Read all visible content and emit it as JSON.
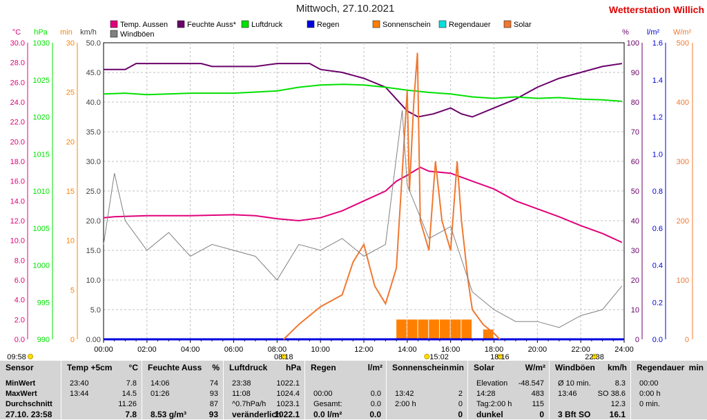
{
  "header": {
    "title": "Mittwoch, 27.10.2021",
    "station": "Wetterstation Willich"
  },
  "axes": {
    "left_units": [
      "°C",
      "hPa",
      "min",
      "km/h"
    ],
    "right_units": [
      "%",
      "l/m²",
      "W/m²"
    ],
    "temp_ticks": [
      "30.0",
      "28.0",
      "26.0",
      "24.0",
      "22.0",
      "20.0",
      "18.0",
      "16.0",
      "14.0",
      "12.0",
      "10.0",
      "8.0",
      "6.0",
      "4.0",
      "2.0",
      "0.0"
    ],
    "hpa_ticks": [
      "1030",
      "1025",
      "1020",
      "1015",
      "1010",
      "1005",
      "1000",
      "995",
      "990"
    ],
    "min_ticks": [
      "30",
      "25",
      "20",
      "15",
      "10",
      "5",
      "0"
    ],
    "kmh_ticks": [
      "50.0",
      "45.0",
      "40.0",
      "35.0",
      "30.0",
      "25.0",
      "20.0",
      "15.0",
      "10.0",
      "5.0",
      "0.00"
    ],
    "pct_ticks": [
      "100",
      "90",
      "80",
      "70",
      "60",
      "50",
      "40",
      "30",
      "20",
      "10",
      "0"
    ],
    "lm2_ticks": [
      "1.6",
      "1.4",
      "1.2",
      "1.0",
      "0.8",
      "0.6",
      "0.4",
      "0.2",
      "0.0"
    ],
    "wm2_ticks": [
      "500",
      "400",
      "300",
      "200",
      "100",
      "0"
    ],
    "time_ticks": [
      "00:00",
      "02:00",
      "04:00",
      "06:00",
      "08:00",
      "10:00",
      "12:00",
      "14:00",
      "16:00",
      "18:00",
      "20:00",
      "22:00",
      "24:00"
    ]
  },
  "legend": [
    {
      "label": "Temp. Aussen",
      "color": "#e0007a"
    },
    {
      "label": "Feuchte Auss*",
      "color": "#6a006a"
    },
    {
      "label": "Luftdruck",
      "color": "#00e000"
    },
    {
      "label": "Regen",
      "color": "#0000e0"
    },
    {
      "label": "Sonnenschein",
      "color": "#ff8000"
    },
    {
      "label": "Regendauer",
      "color": "#00e0e0"
    },
    {
      "label": "Solar",
      "color": "#f07830"
    },
    {
      "label": "Windböen",
      "color": "#808080"
    }
  ],
  "sun_markers": [
    {
      "label": "09:58",
      "hour": 9.967
    },
    {
      "label": "08:18",
      "hour": 8.3
    },
    {
      "label": "15:02",
      "hour": 15.033
    },
    {
      "label": "18:16",
      "hour": 18.267
    },
    {
      "label": "22:38",
      "hour": 22.633
    }
  ],
  "chart_data": {
    "type": "line",
    "title": "Mittwoch, 27.10.2021",
    "x_unit": "hour",
    "xlim": [
      0,
      24
    ],
    "temp_ylim": [
      0,
      30
    ],
    "hpa_ylim": [
      990,
      1030
    ],
    "min_ylim": [
      0,
      30
    ],
    "kmh_ylim": [
      0,
      50
    ],
    "pct_ylim": [
      0,
      100
    ],
    "lm2_ylim": [
      0,
      1.6
    ],
    "wm2_ylim": [
      0,
      500
    ],
    "series": [
      {
        "name": "Temp. Aussen",
        "axis": "temp",
        "color": "#e0007a",
        "points": [
          [
            0,
            12.3
          ],
          [
            0.5,
            12.4
          ],
          [
            2,
            12.5
          ],
          [
            4,
            12.5
          ],
          [
            6,
            12.6
          ],
          [
            7,
            12.5
          ],
          [
            8,
            12.2
          ],
          [
            9,
            12.0
          ],
          [
            10,
            12.3
          ],
          [
            11,
            13.0
          ],
          [
            12,
            14.0
          ],
          [
            13,
            15.0
          ],
          [
            13.5,
            16.0
          ],
          [
            14,
            16.6
          ],
          [
            14.6,
            17.4
          ],
          [
            15,
            17.0
          ],
          [
            16,
            16.8
          ],
          [
            17,
            16.0
          ],
          [
            18,
            15.2
          ],
          [
            19,
            14.0
          ],
          [
            20,
            13.2
          ],
          [
            21,
            12.4
          ],
          [
            22,
            11.5
          ],
          [
            23,
            10.7
          ],
          [
            23.9,
            9.8
          ]
        ]
      },
      {
        "name": "Feuchte Auss*",
        "axis": "pct",
        "color": "#6a006a",
        "points": [
          [
            0,
            91
          ],
          [
            1,
            91
          ],
          [
            1.5,
            93
          ],
          [
            3,
            93
          ],
          [
            4.5,
            93
          ],
          [
            5,
            92
          ],
          [
            7,
            92
          ],
          [
            8,
            93
          ],
          [
            9.5,
            93
          ],
          [
            10,
            91
          ],
          [
            11,
            90
          ],
          [
            12,
            88
          ],
          [
            13,
            85
          ],
          [
            13.5,
            81
          ],
          [
            14,
            77
          ],
          [
            14.5,
            75
          ],
          [
            15.2,
            76
          ],
          [
            16,
            78
          ],
          [
            16.5,
            76
          ],
          [
            17,
            75
          ],
          [
            18,
            78
          ],
          [
            19,
            81
          ],
          [
            20,
            85
          ],
          [
            21,
            88
          ],
          [
            22,
            90
          ],
          [
            23,
            92
          ],
          [
            23.9,
            93
          ]
        ]
      },
      {
        "name": "Luftdruck",
        "axis": "hpa",
        "color": "#00e000",
        "points": [
          [
            0,
            1023.1
          ],
          [
            1,
            1023.2
          ],
          [
            2,
            1023.0
          ],
          [
            4,
            1023.2
          ],
          [
            6,
            1023.2
          ],
          [
            8,
            1023.5
          ],
          [
            9,
            1024.0
          ],
          [
            10,
            1024.3
          ],
          [
            11.08,
            1024.4
          ],
          [
            12,
            1024.3
          ],
          [
            13,
            1024.0
          ],
          [
            14,
            1023.6
          ],
          [
            15,
            1023.3
          ],
          [
            16,
            1023.1
          ],
          [
            17,
            1022.7
          ],
          [
            18,
            1022.5
          ],
          [
            19,
            1022.7
          ],
          [
            20,
            1022.5
          ],
          [
            21,
            1022.6
          ],
          [
            22,
            1022.4
          ],
          [
            23,
            1022.3
          ],
          [
            23.9,
            1022.1
          ]
        ]
      },
      {
        "name": "Regen",
        "axis": "lm2",
        "color": "#0000e0",
        "points": [
          [
            0,
            0
          ],
          [
            24,
            0
          ]
        ]
      },
      {
        "name": "Solar",
        "axis": "wm2",
        "color": "#f07830",
        "points": [
          [
            8.3,
            0
          ],
          [
            9,
            25
          ],
          [
            10,
            55
          ],
          [
            11,
            75
          ],
          [
            11.5,
            130
          ],
          [
            12,
            160
          ],
          [
            12.5,
            90
          ],
          [
            13,
            60
          ],
          [
            13.5,
            120
          ],
          [
            13.8,
            300
          ],
          [
            14,
            420
          ],
          [
            14.1,
            250
          ],
          [
            14.3,
            400
          ],
          [
            14.47,
            483
          ],
          [
            14.6,
            200
          ],
          [
            15,
            150
          ],
          [
            15.3,
            300
          ],
          [
            15.6,
            200
          ],
          [
            16,
            150
          ],
          [
            16.3,
            300
          ],
          [
            16.5,
            200
          ],
          [
            16.8,
            100
          ],
          [
            17,
            50
          ],
          [
            17.5,
            25
          ],
          [
            18,
            10
          ],
          [
            18.27,
            0
          ]
        ]
      },
      {
        "name": "Windböen",
        "axis": "kmh",
        "color": "#808080",
        "points": [
          [
            0,
            16
          ],
          [
            0.5,
            28
          ],
          [
            1,
            20
          ],
          [
            2,
            15
          ],
          [
            3,
            18
          ],
          [
            4,
            14
          ],
          [
            5,
            16
          ],
          [
            6,
            15
          ],
          [
            7,
            14
          ],
          [
            8,
            10
          ],
          [
            9,
            16
          ],
          [
            10,
            15
          ],
          [
            11,
            17
          ],
          [
            12,
            14
          ],
          [
            13,
            16
          ],
          [
            13.77,
            38.6
          ],
          [
            14,
            26
          ],
          [
            15,
            17
          ],
          [
            16,
            19
          ],
          [
            17,
            8
          ],
          [
            18,
            5
          ],
          [
            19,
            3
          ],
          [
            20,
            3
          ],
          [
            21,
            2
          ],
          [
            22,
            4
          ],
          [
            23,
            5
          ],
          [
            23.9,
            9
          ]
        ]
      }
    ],
    "bars": {
      "name": "Sonnenschein",
      "axis": "min",
      "color": "#ff8000",
      "unit": "min per 30 min",
      "items": [
        [
          13.5,
          2
        ],
        [
          14.0,
          2
        ],
        [
          14.5,
          2
        ],
        [
          15.0,
          2
        ],
        [
          15.5,
          2
        ],
        [
          16.0,
          2
        ],
        [
          16.5,
          2
        ],
        [
          17.5,
          1
        ]
      ]
    }
  },
  "panel": {
    "sensor": {
      "header": "Sensor",
      "rows": [
        "MinWert",
        "MaxWert",
        "Durchschnitt",
        "27.10. 23:58"
      ]
    },
    "temp": {
      "header": "Temp +5cm",
      "unit": "°C",
      "rows": [
        {
          "t": "23:40",
          "v": "7.8"
        },
        {
          "t": "13:44",
          "v": "14.5"
        },
        {
          "t": "",
          "v": "11.26"
        },
        {
          "t": "",
          "v": "7.8"
        }
      ]
    },
    "feuchte": {
      "header": "Feuchte Auss",
      "unit": "%",
      "rows": [
        {
          "t": "14:06",
          "v": "74"
        },
        {
          "t": "01:26",
          "v": "93"
        },
        {
          "t": "",
          "v": "87"
        },
        {
          "t": "8.53 g/m³",
          "v": "93"
        }
      ]
    },
    "luftdruck": {
      "header": "Luftdruck",
      "unit": "hPa",
      "rows": [
        {
          "t": "23:38",
          "v": "1022.1"
        },
        {
          "t": "11:08",
          "v": "1024.4"
        },
        {
          "t": "^0.7hPa/h",
          "v": "1023.1"
        },
        {
          "t": "veränderlich",
          "v": "1022.1"
        }
      ]
    },
    "regen": {
      "header": "Regen",
      "unit": "l/m²",
      "rows": [
        {
          "t": "",
          "v": ""
        },
        {
          "t": "00:00",
          "v": "0.0"
        },
        {
          "t": "Gesamt:",
          "v": "0.0"
        },
        {
          "t": "0.0 l/m²",
          "v": "0.0"
        }
      ]
    },
    "sonne": {
      "header": "Sonnenschein",
      "unit": "min",
      "rows": [
        {
          "t": "",
          "v": ""
        },
        {
          "t": "13:42",
          "v": "2"
        },
        {
          "t": "2:00 h",
          "v": "0"
        },
        {
          "t": "",
          "v": "0"
        }
      ]
    },
    "solar": {
      "header": "Solar",
      "unit": "W/m²",
      "rows": [
        {
          "t": "Elevation",
          "v": "-48.547"
        },
        {
          "t": "14:28",
          "v": "483"
        },
        {
          "t": "Tag:2:00 h",
          "v": "115"
        },
        {
          "t": "dunkel",
          "v": "0"
        }
      ]
    },
    "wind": {
      "header": "Windböen",
      "unit": "km/h",
      "rows": [
        {
          "t": "Ø 10 min.",
          "v": "8.3"
        },
        {
          "t": "13:46",
          "v": "SO 38.6"
        },
        {
          "t": "",
          "v": "12.3"
        },
        {
          "t": "3 Bft SO",
          "v": "16.1"
        }
      ]
    },
    "regendauer": {
      "header": "Regendauer",
      "unit": "min",
      "rows": [
        {
          "t": "00:00",
          "v": ""
        },
        {
          "t": "0:00 h",
          "v": ""
        },
        {
          "t": "0 min.",
          "v": ""
        },
        {
          "t": "",
          "v": ""
        }
      ]
    }
  }
}
